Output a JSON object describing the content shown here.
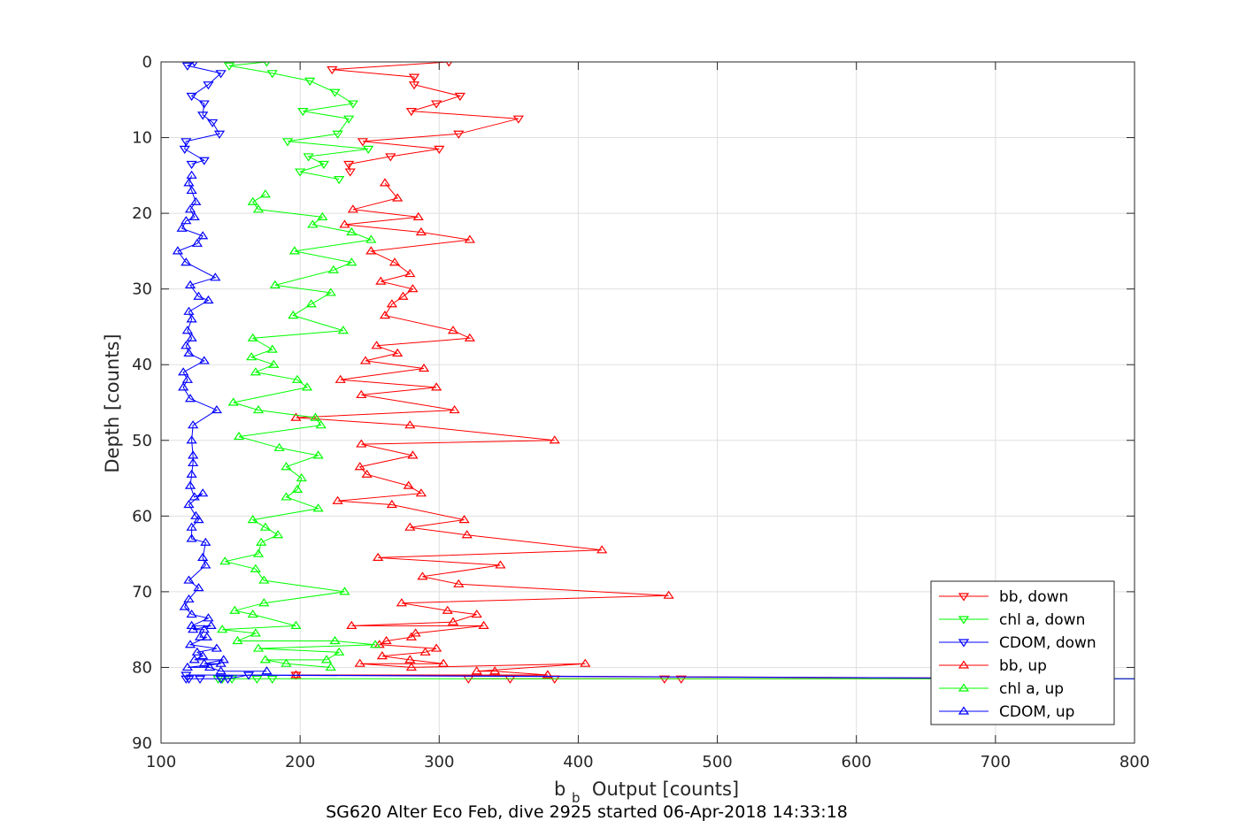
{
  "chart_data": {
    "type": "line",
    "title": "SG620 Alter Eco Feb, dive 2925 started 06-Apr-2018 14:33:18",
    "xlabel_main": "b",
    "xlabel_sub": "b",
    "xlabel_rest": " Output [counts]",
    "ylabel": "Depth [counts]",
    "xlim": [
      100,
      800
    ],
    "ylim": [
      0,
      90
    ],
    "y_reversed": true,
    "grid": true,
    "legend_position": "bottom-right",
    "xticks": [
      "100",
      "200",
      "300",
      "400",
      "500",
      "600",
      "700",
      "800"
    ],
    "yticks": [
      "0",
      "10",
      "20",
      "30",
      "40",
      "50",
      "60",
      "70",
      "80",
      "90"
    ],
    "series": [
      {
        "name": "bb, down",
        "color": "#ff0000",
        "marker": "triangle-down",
        "x": [
          307,
          223,
          282,
          282,
          315,
          298,
          280,
          357,
          314,
          245,
          300,
          265,
          235,
          236
        ],
        "y": [
          0,
          1,
          2,
          3,
          4.5,
          5.5,
          6.5,
          7.5,
          9.5,
          10.5,
          11.5,
          12.5,
          13.5,
          14.5
        ]
      },
      {
        "name": "chl a, down",
        "color": "#00ff00",
        "marker": "triangle-down",
        "x": [
          176,
          149,
          180,
          207,
          225,
          238,
          202,
          235,
          227,
          191,
          249,
          206,
          217,
          200,
          228
        ],
        "y": [
          0,
          0.5,
          1.5,
          2.5,
          4,
          5.5,
          6.5,
          7.5,
          9.5,
          10.5,
          11.5,
          12.5,
          13.5,
          14.5,
          15.5
        ]
      },
      {
        "name": "CDOM, down",
        "color": "#0000ff",
        "marker": "triangle-down",
        "x": [
          124,
          119,
          143,
          134,
          122,
          131,
          130,
          137,
          142,
          118,
          117,
          131,
          122
        ],
        "y": [
          0,
          0.5,
          1.5,
          3,
          4.5,
          5.5,
          7,
          8,
          9.5,
          10.5,
          11.5,
          13,
          13.5
        ]
      },
      {
        "name": "bb, up",
        "color": "#ff0000",
        "marker": "triangle-up",
        "x": [
          261,
          270,
          238,
          285,
          232,
          287,
          322,
          251,
          268,
          279,
          258,
          281,
          274,
          266,
          261,
          310,
          322,
          255,
          270,
          247,
          289,
          229,
          298,
          244,
          311,
          197,
          279,
          383,
          244,
          281,
          243,
          248,
          278,
          287,
          227,
          266,
          318,
          279,
          320,
          417,
          256,
          344,
          288,
          314,
          465,
          273,
          306,
          327,
          310,
          237,
          332,
          283,
          280,
          262,
          257,
          298,
          290,
          259,
          279,
          303,
          243,
          280,
          405,
          327,
          340,
          378,
          197
        ],
        "y": [
          16,
          18,
          19.5,
          20.5,
          21.5,
          22.5,
          23.5,
          25,
          26.5,
          28,
          29,
          30,
          31,
          32,
          33.5,
          35.5,
          36.5,
          37.5,
          38.5,
          39.5,
          40.5,
          42,
          43,
          44,
          46,
          47,
          48,
          50,
          50.5,
          52,
          53.5,
          54.5,
          56,
          57,
          58,
          58.5,
          60.5,
          61.5,
          62.5,
          64.5,
          65.5,
          66.5,
          68,
          69,
          70.5,
          71.5,
          72.5,
          73,
          74,
          74.5,
          74.5,
          75.5,
          76,
          76.5,
          77,
          77.5,
          78,
          78.5,
          79,
          79.5,
          79.5,
          80,
          79.5,
          80.5,
          80.5,
          81,
          81
        ]
      },
      {
        "name": "chl a, up",
        "color": "#00ff00",
        "marker": "triangle-up",
        "x": [
          175,
          166,
          170,
          216,
          209,
          237,
          251,
          196,
          237,
          224,
          182,
          222,
          208,
          195,
          231,
          166,
          180,
          165,
          181,
          168,
          198,
          205,
          152,
          170,
          211,
          215,
          156,
          185,
          213,
          190,
          201,
          198,
          190,
          213,
          166,
          175,
          184,
          172,
          170,
          146,
          168,
          174,
          232,
          174,
          153,
          166,
          197,
          144,
          168,
          155,
          225,
          254,
          170,
          228,
          219,
          175,
          190,
          222
        ],
        "y": [
          17.5,
          18.5,
          19.5,
          20.5,
          21.5,
          22.5,
          23.5,
          25,
          26.5,
          27.5,
          29.5,
          30.5,
          32,
          33.5,
          35.5,
          36.5,
          38,
          39,
          40,
          41,
          42,
          43,
          45,
          46,
          47,
          48,
          49.5,
          51,
          52,
          53.5,
          55,
          56.5,
          57.5,
          59,
          60.5,
          61.5,
          62.5,
          63.5,
          65,
          66,
          67,
          68.5,
          70,
          71.5,
          72.5,
          73,
          74.5,
          75,
          75.5,
          76.5,
          76.5,
          77,
          77.5,
          78,
          79,
          79,
          79.5,
          80
        ]
      },
      {
        "name": "CDOM, up",
        "color": "#0000ff",
        "marker": "triangle-up",
        "x": [
          122,
          120,
          122,
          125,
          121,
          124,
          118,
          115,
          130,
          126,
          112,
          118,
          139,
          121,
          127,
          134,
          120,
          122,
          119,
          122,
          118,
          120,
          131,
          116,
          119,
          116,
          121,
          140,
          123,
          122,
          123,
          123,
          122,
          121,
          124,
          130,
          120,
          125,
          127,
          122,
          122,
          132,
          130,
          132,
          120,
          127,
          120,
          117,
          122,
          134,
          122,
          136,
          123,
          131,
          128,
          133,
          121,
          140,
          126,
          130,
          124,
          145,
          131,
          143,
          119,
          135,
          143,
          176
        ],
        "y": [
          15,
          16,
          17,
          18.5,
          19.5,
          20.5,
          21,
          22,
          23,
          24,
          25,
          26.5,
          28.5,
          29.5,
          31,
          31.5,
          33,
          34,
          35.5,
          36.5,
          37.5,
          38.5,
          39.5,
          41,
          42,
          43,
          44.5,
          46,
          48,
          50,
          52,
          53,
          54.5,
          56,
          57.5,
          57,
          58.5,
          60,
          60.5,
          61.5,
          63,
          63.5,
          65.5,
          66.5,
          68.5,
          69.5,
          71,
          72,
          73,
          73.5,
          74.5,
          74.5,
          75,
          75,
          76,
          76,
          77,
          77.5,
          78,
          78.5,
          79,
          79,
          79.5,
          79.5,
          80,
          80,
          80.5,
          80.5
        ]
      },
      {
        "name": "",
        "color": "#ff0000",
        "marker": "triangle-down",
        "x": [
          197,
          800,
          474,
          462,
          383,
          351,
          321
        ],
        "y": [
          81,
          81.5,
          81.5,
          81.5,
          81.5,
          81.5,
          81.5
        ]
      },
      {
        "name": "",
        "color": "#00ff00",
        "marker": "triangle-down",
        "x": [
          151,
          800,
          180,
          169,
          141,
          144
        ],
        "y": [
          81.5,
          81.5,
          81.5,
          81.5,
          81.5,
          81.5
        ]
      },
      {
        "name": "",
        "color": "#0000ff",
        "marker": "triangle-down",
        "x": [
          118,
          800,
          163,
          148,
          143,
          128,
          120,
          118
        ],
        "y": [
          81,
          81.5,
          81,
          81.5,
          81.5,
          81.5,
          81.5,
          81.5
        ]
      }
    ]
  }
}
